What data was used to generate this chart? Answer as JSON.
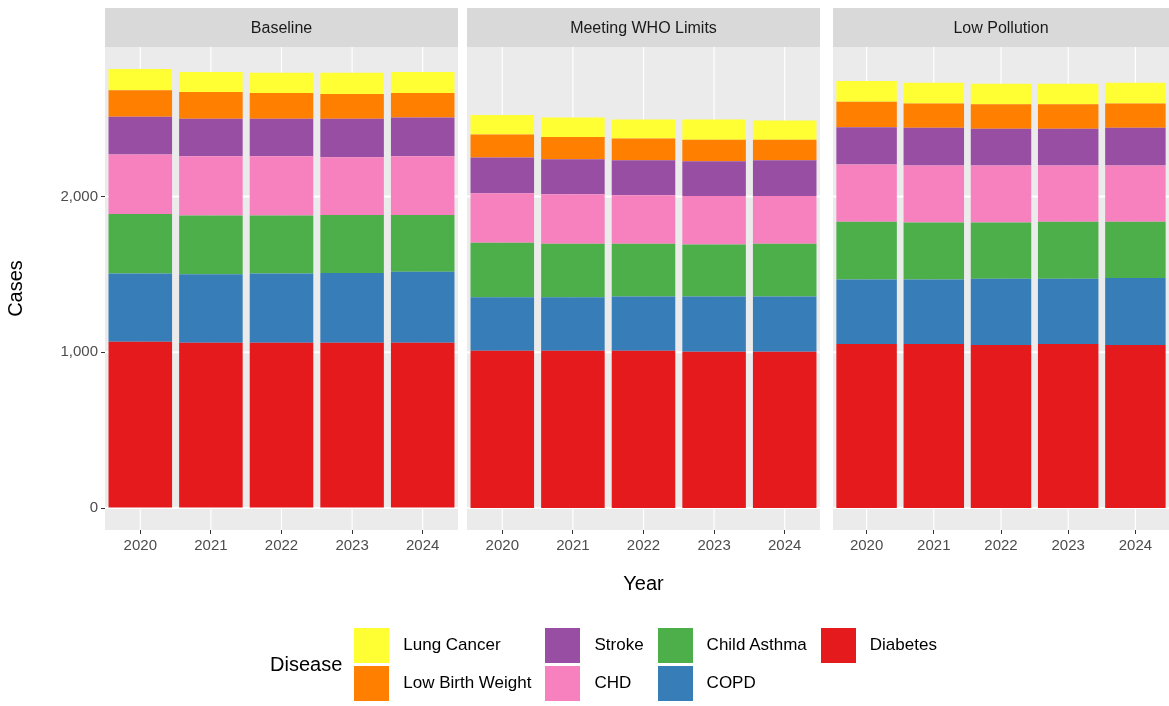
{
  "chart_data": [
    {
      "type": "bar",
      "title": "Baseline",
      "ylabel": "Cases",
      "stacked": true,
      "grid": true,
      "legend": "bottom",
      "legend_title": "Disease",
      "categories": [
        "2020",
        "2021",
        "2022",
        "2023",
        "2024"
      ],
      "ylim": [
        -141,
        2959
      ],
      "yticks": [
        0,
        {
          "value": 1000,
          "label": "1,000"
        },
        {
          "value": 2000,
          "label": "2,000"
        }
      ],
      "series": [
        {
          "name": "Diabetes",
          "color": "#e41a1c",
          "values": [
            1068,
            1061,
            1061,
            1061,
            1061
          ]
        },
        {
          "name": "COPD",
          "color": "#377eb8",
          "values": [
            438,
            440,
            445,
            448,
            455
          ]
        },
        {
          "name": "Child Asthma",
          "color": "#4daf4a",
          "values": [
            381,
            376,
            371,
            372,
            365
          ]
        },
        {
          "name": "CHD",
          "color": "#f781bf",
          "values": [
            382,
            381,
            381,
            371,
            377
          ]
        },
        {
          "name": "Stroke",
          "color": "#984ea3",
          "values": [
            243,
            241,
            241,
            247,
            248
          ]
        },
        {
          "name": "Low Birth Weight",
          "color": "#ff7f00",
          "values": [
            169,
            171,
            165,
            159,
            158
          ]
        },
        {
          "name": "Lung Cancer",
          "color": "#ffff33",
          "values": [
            137,
            128,
            130,
            136,
            134
          ]
        }
      ]
    },
    {
      "type": "bar",
      "title": "Meeting WHO Limits",
      "xlabel": "Year",
      "stacked": true,
      "grid": true,
      "tick_labels": "x",
      "categories": [
        "2020",
        "2021",
        "2022",
        "2023",
        "2024"
      ],
      "ylim": [
        -141,
        2959
      ],
      "yticks": [
        0,
        1000,
        2000
      ],
      "series": [
        {
          "color": "#e41a1c",
          "values": [
            1010,
            1010,
            1010,
            1003,
            1003
          ]
        },
        {
          "color": "#377eb8",
          "values": [
            343,
            343,
            347,
            354,
            354
          ]
        },
        {
          "color": "#4daf4a",
          "values": [
            350,
            343,
            339,
            335,
            339
          ]
        },
        {
          "color": "#f781bf",
          "values": [
            318,
            318,
            312,
            310,
            306
          ]
        },
        {
          "color": "#984ea3",
          "values": [
            228,
            224,
            224,
            224,
            230
          ]
        },
        {
          "color": "#ff7f00",
          "values": [
            149,
            143,
            139,
            138,
            132
          ]
        },
        {
          "color": "#ffff33",
          "values": [
            124,
            126,
            123,
            130,
            124
          ]
        }
      ]
    },
    {
      "type": "bar",
      "title": "Low Pollution",
      "stacked": true,
      "grid": true,
      "tick_labels": "x",
      "categories": [
        "2020",
        "2021",
        "2022",
        "2023",
        "2024"
      ],
      "ylim": [
        -141,
        2959
      ],
      "yticks": [
        0,
        1000,
        2000
      ],
      "series": [
        {
          "color": "#e41a1c",
          "values": [
            1053,
            1053,
            1047,
            1053,
            1047
          ]
        },
        {
          "color": "#377eb8",
          "values": [
            414,
            414,
            424,
            418,
            430
          ]
        },
        {
          "color": "#4daf4a",
          "values": [
            371,
            365,
            361,
            367,
            361
          ]
        },
        {
          "color": "#f781bf",
          "values": [
            367,
            367,
            367,
            361,
            361
          ]
        },
        {
          "color": "#984ea3",
          "values": [
            239,
            241,
            235,
            235,
            241
          ]
        },
        {
          "color": "#ff7f00",
          "values": [
            164,
            157,
            157,
            157,
            157
          ]
        },
        {
          "color": "#ffff33",
          "values": [
            133,
            133,
            132,
            132,
            133
          ]
        }
      ]
    }
  ]
}
